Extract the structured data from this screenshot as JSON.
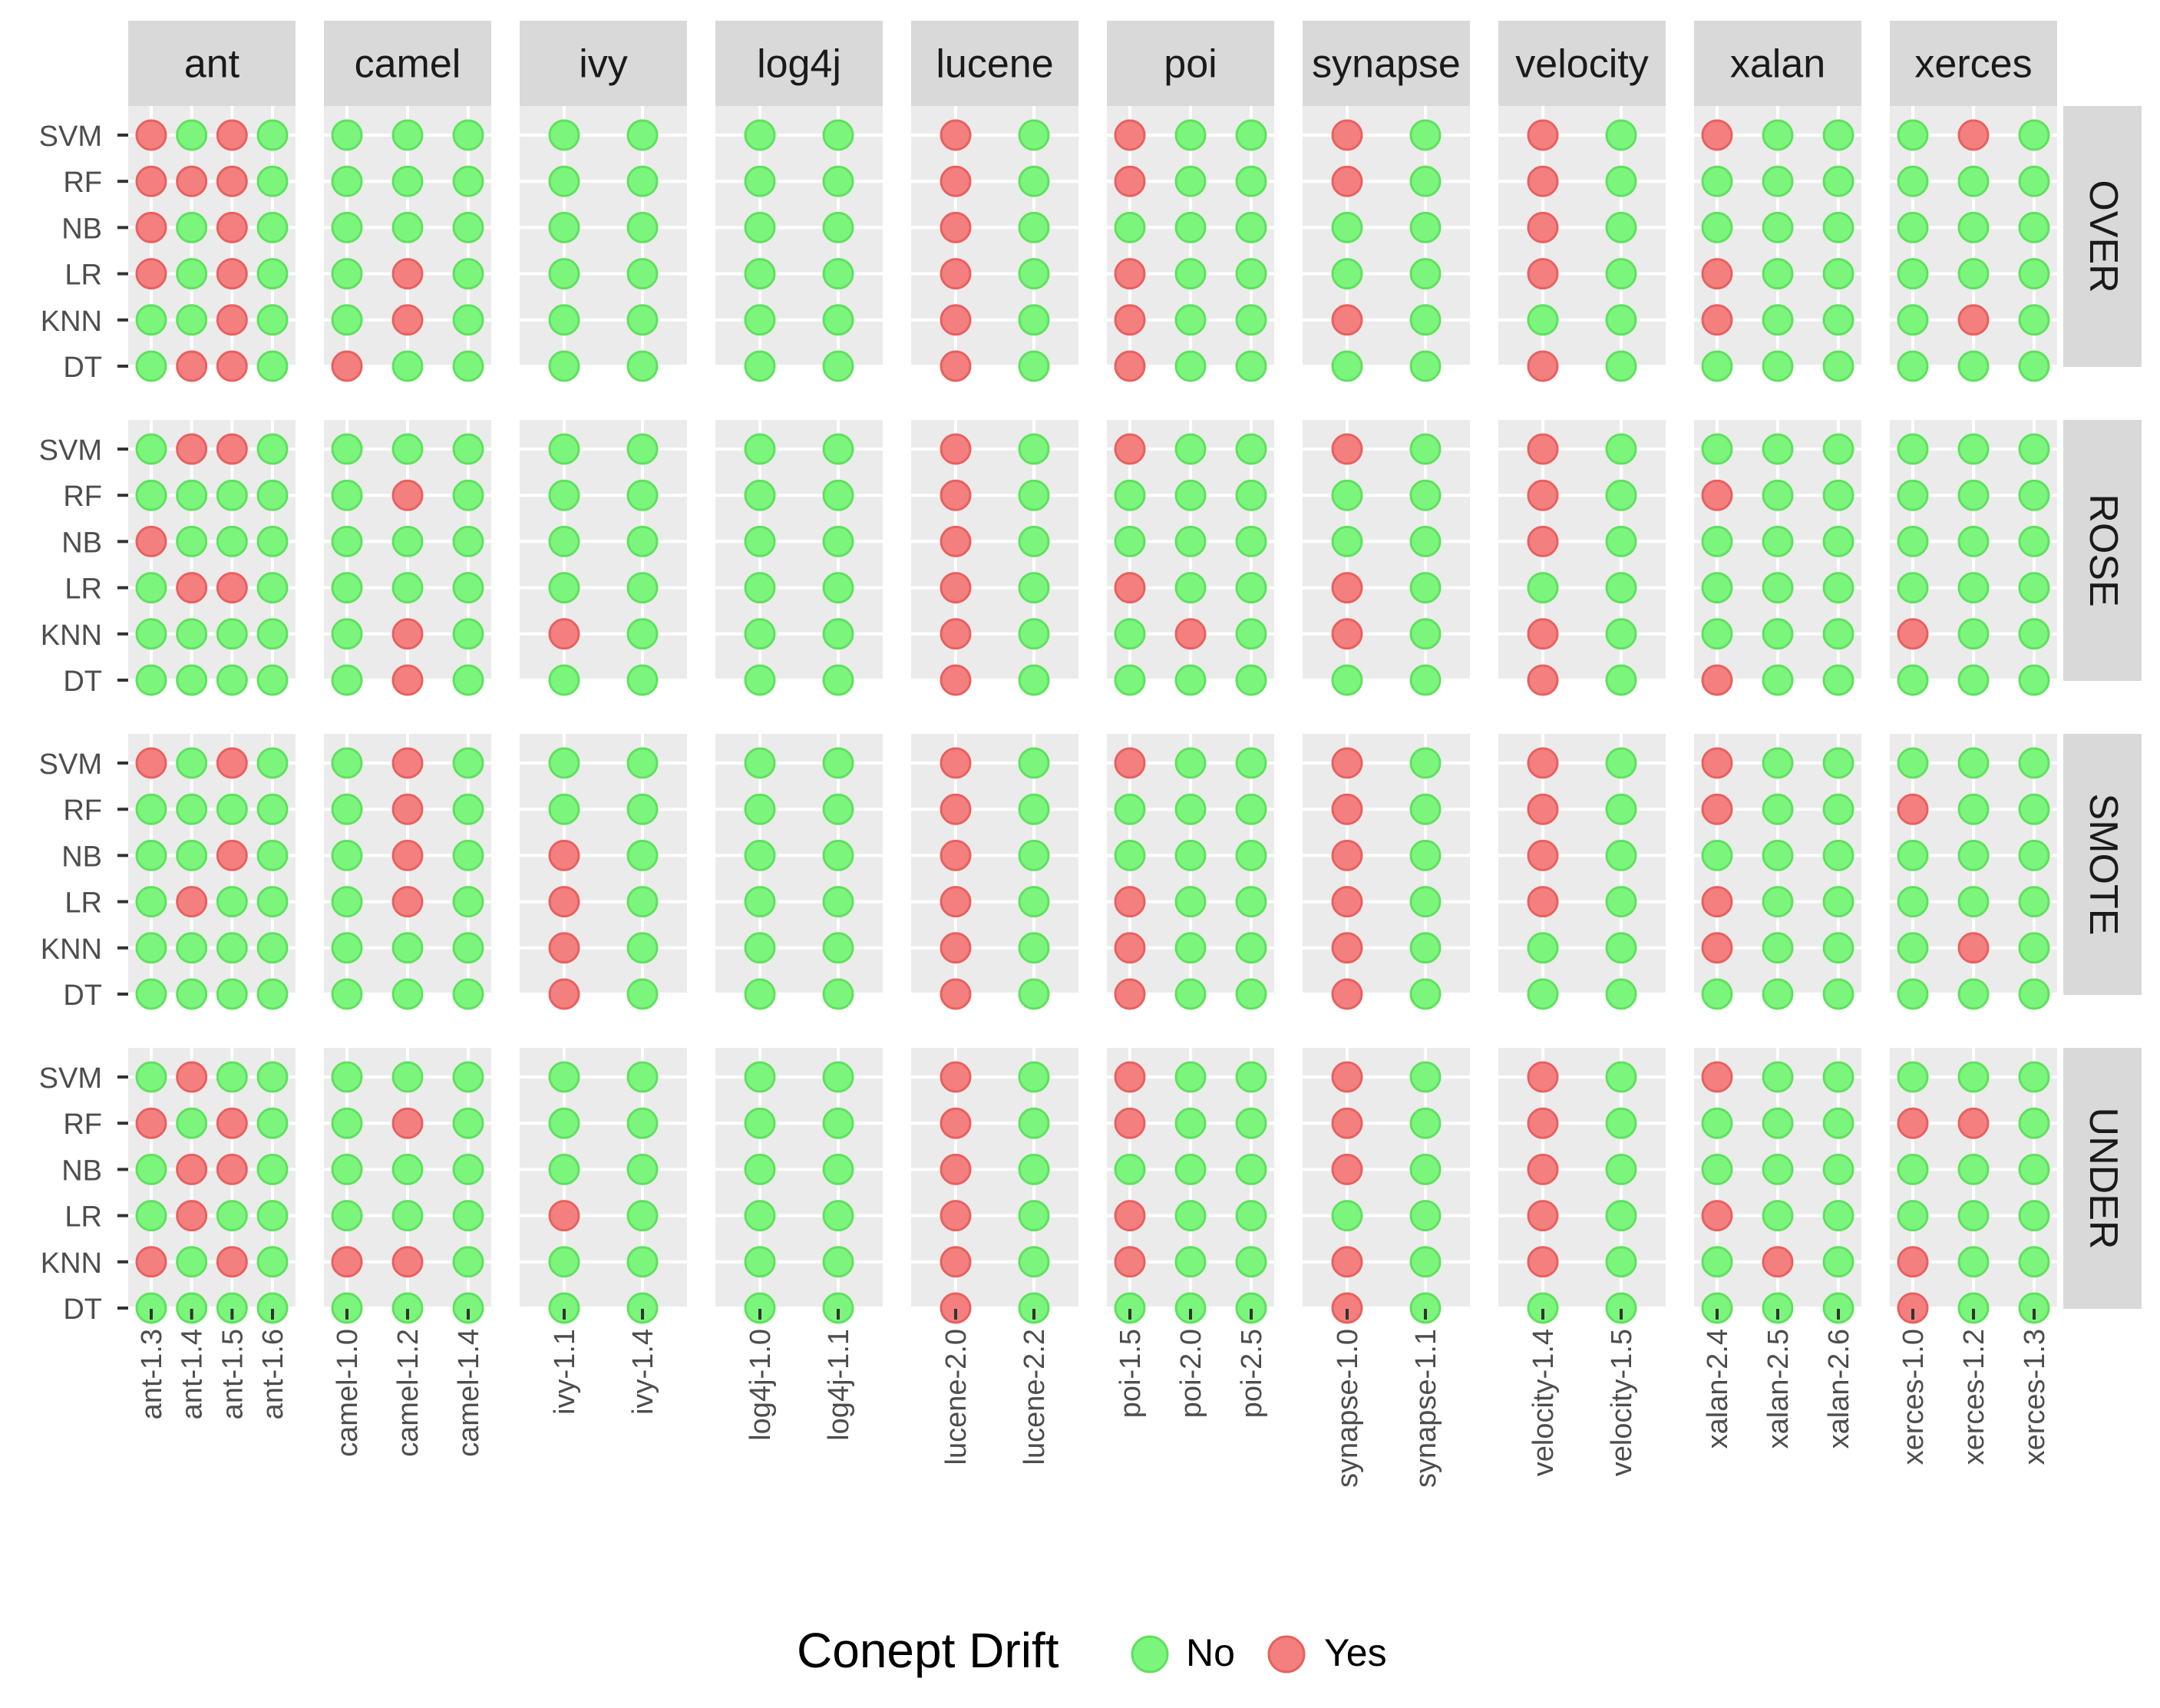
{
  "chart_data": {
    "type": "scatter",
    "title": "",
    "xlabel": "",
    "ylabel": "",
    "y_categories": [
      "SVM",
      "RF",
      "NB",
      "LR",
      "KNN",
      "DT"
    ],
    "column_facets": [
      {
        "name": "ant",
        "releases": [
          "ant-1.3",
          "ant-1.4",
          "ant-1.5",
          "ant-1.6"
        ]
      },
      {
        "name": "camel",
        "releases": [
          "camel-1.0",
          "camel-1.2",
          "camel-1.4"
        ]
      },
      {
        "name": "ivy",
        "releases": [
          "ivy-1.1",
          "ivy-1.4"
        ]
      },
      {
        "name": "log4j",
        "releases": [
          "log4j-1.0",
          "log4j-1.1"
        ]
      },
      {
        "name": "lucene",
        "releases": [
          "lucene-2.0",
          "lucene-2.2"
        ]
      },
      {
        "name": "poi",
        "releases": [
          "poi-1.5",
          "poi-2.0",
          "poi-2.5"
        ]
      },
      {
        "name": "synapse",
        "releases": [
          "synapse-1.0",
          "synapse-1.1"
        ]
      },
      {
        "name": "velocity",
        "releases": [
          "velocity-1.4",
          "velocity-1.5"
        ]
      },
      {
        "name": "xalan",
        "releases": [
          "xalan-2.4",
          "xalan-2.5",
          "xalan-2.6"
        ]
      },
      {
        "name": "xerces",
        "releases": [
          "xerces-1.0",
          "xerces-1.2",
          "xerces-1.3"
        ]
      }
    ],
    "row_facets": [
      "OVER",
      "ROSE",
      "SMOTE",
      "UNDER"
    ],
    "legend": {
      "title": "Conept Drift",
      "entries": [
        {
          "label": "No",
          "color": "#7CF57C",
          "stroke": "#5FE05F"
        },
        {
          "label": "Yes",
          "color": "#F47F7F",
          "stroke": "#E86060"
        }
      ],
      "position": "bottom"
    },
    "drift": {
      "OVER": {
        "ant": {
          "SVM": [
            1,
            0,
            1,
            0
          ],
          "RF": [
            1,
            1,
            1,
            0
          ],
          "NB": [
            1,
            0,
            1,
            0
          ],
          "LR": [
            1,
            0,
            1,
            0
          ],
          "KNN": [
            0,
            0,
            1,
            0
          ],
          "DT": [
            0,
            1,
            1,
            0
          ]
        },
        "camel": {
          "SVM": [
            0,
            0,
            0
          ],
          "RF": [
            0,
            0,
            0
          ],
          "NB": [
            0,
            0,
            0
          ],
          "LR": [
            0,
            1,
            0
          ],
          "KNN": [
            0,
            1,
            0
          ],
          "DT": [
            1,
            0,
            0
          ]
        },
        "ivy": {
          "SVM": [
            0,
            0
          ],
          "RF": [
            0,
            0
          ],
          "NB": [
            0,
            0
          ],
          "LR": [
            0,
            0
          ],
          "KNN": [
            0,
            0
          ],
          "DT": [
            0,
            0
          ]
        },
        "log4j": {
          "SVM": [
            0,
            0
          ],
          "RF": [
            0,
            0
          ],
          "NB": [
            0,
            0
          ],
          "LR": [
            0,
            0
          ],
          "KNN": [
            0,
            0
          ],
          "DT": [
            0,
            0
          ]
        },
        "lucene": {
          "SVM": [
            1,
            0
          ],
          "RF": [
            1,
            0
          ],
          "NB": [
            1,
            0
          ],
          "LR": [
            1,
            0
          ],
          "KNN": [
            1,
            0
          ],
          "DT": [
            1,
            0
          ]
        },
        "poi": {
          "SVM": [
            1,
            0,
            0
          ],
          "RF": [
            1,
            0,
            0
          ],
          "NB": [
            0,
            0,
            0
          ],
          "LR": [
            1,
            0,
            0
          ],
          "KNN": [
            1,
            0,
            0
          ],
          "DT": [
            1,
            0,
            0
          ]
        },
        "synapse": {
          "SVM": [
            1,
            0
          ],
          "RF": [
            1,
            0
          ],
          "NB": [
            0,
            0
          ],
          "LR": [
            0,
            0
          ],
          "KNN": [
            1,
            0
          ],
          "DT": [
            0,
            0
          ]
        },
        "velocity": {
          "SVM": [
            1,
            0
          ],
          "RF": [
            1,
            0
          ],
          "NB": [
            1,
            0
          ],
          "LR": [
            1,
            0
          ],
          "KNN": [
            0,
            0
          ],
          "DT": [
            1,
            0
          ]
        },
        "xalan": {
          "SVM": [
            1,
            0,
            0
          ],
          "RF": [
            0,
            0,
            0
          ],
          "NB": [
            0,
            0,
            0
          ],
          "LR": [
            1,
            0,
            0
          ],
          "KNN": [
            1,
            0,
            0
          ],
          "DT": [
            0,
            0,
            0
          ]
        },
        "xerces": {
          "SVM": [
            0,
            1,
            0
          ],
          "RF": [
            0,
            0,
            0
          ],
          "NB": [
            0,
            0,
            0
          ],
          "LR": [
            0,
            0,
            0
          ],
          "KNN": [
            0,
            1,
            0
          ],
          "DT": [
            0,
            0,
            0
          ]
        }
      },
      "ROSE": {
        "ant": {
          "SVM": [
            0,
            1,
            1,
            0
          ],
          "RF": [
            0,
            0,
            0,
            0
          ],
          "NB": [
            1,
            0,
            0,
            0
          ],
          "LR": [
            0,
            1,
            1,
            0
          ],
          "KNN": [
            0,
            0,
            0,
            0
          ],
          "DT": [
            0,
            0,
            0,
            0
          ]
        },
        "camel": {
          "SVM": [
            0,
            0,
            0
          ],
          "RF": [
            0,
            1,
            0
          ],
          "NB": [
            0,
            0,
            0
          ],
          "LR": [
            0,
            0,
            0
          ],
          "KNN": [
            0,
            1,
            0
          ],
          "DT": [
            0,
            1,
            0
          ]
        },
        "ivy": {
          "SVM": [
            0,
            0
          ],
          "RF": [
            0,
            0
          ],
          "NB": [
            0,
            0
          ],
          "LR": [
            0,
            0
          ],
          "KNN": [
            1,
            0
          ],
          "DT": [
            0,
            0
          ]
        },
        "log4j": {
          "SVM": [
            0,
            0
          ],
          "RF": [
            0,
            0
          ],
          "NB": [
            0,
            0
          ],
          "LR": [
            0,
            0
          ],
          "KNN": [
            0,
            0
          ],
          "DT": [
            0,
            0
          ]
        },
        "lucene": {
          "SVM": [
            1,
            0
          ],
          "RF": [
            1,
            0
          ],
          "NB": [
            1,
            0
          ],
          "LR": [
            1,
            0
          ],
          "KNN": [
            1,
            0
          ],
          "DT": [
            1,
            0
          ]
        },
        "poi": {
          "SVM": [
            1,
            0,
            0
          ],
          "RF": [
            0,
            0,
            0
          ],
          "NB": [
            0,
            0,
            0
          ],
          "LR": [
            1,
            0,
            0
          ],
          "KNN": [
            0,
            1,
            0
          ],
          "DT": [
            0,
            0,
            0
          ]
        },
        "synapse": {
          "SVM": [
            1,
            0
          ],
          "RF": [
            0,
            0
          ],
          "NB": [
            0,
            0
          ],
          "LR": [
            1,
            0
          ],
          "KNN": [
            1,
            0
          ],
          "DT": [
            0,
            0
          ]
        },
        "velocity": {
          "SVM": [
            1,
            0
          ],
          "RF": [
            1,
            0
          ],
          "NB": [
            1,
            0
          ],
          "LR": [
            0,
            0
          ],
          "KNN": [
            1,
            0
          ],
          "DT": [
            1,
            0
          ]
        },
        "xalan": {
          "SVM": [
            0,
            0,
            0
          ],
          "RF": [
            1,
            0,
            0
          ],
          "NB": [
            0,
            0,
            0
          ],
          "LR": [
            0,
            0,
            0
          ],
          "KNN": [
            0,
            0,
            0
          ],
          "DT": [
            1,
            0,
            0
          ]
        },
        "xerces": {
          "SVM": [
            0,
            0,
            0
          ],
          "RF": [
            0,
            0,
            0
          ],
          "NB": [
            0,
            0,
            0
          ],
          "LR": [
            0,
            0,
            0
          ],
          "KNN": [
            1,
            0,
            0
          ],
          "DT": [
            0,
            0,
            0
          ]
        }
      },
      "SMOTE": {
        "ant": {
          "SVM": [
            1,
            0,
            1,
            0
          ],
          "RF": [
            0,
            0,
            0,
            0
          ],
          "NB": [
            0,
            0,
            1,
            0
          ],
          "LR": [
            0,
            1,
            0,
            0
          ],
          "KNN": [
            0,
            0,
            0,
            0
          ],
          "DT": [
            0,
            0,
            0,
            0
          ]
        },
        "camel": {
          "SVM": [
            0,
            1,
            0
          ],
          "RF": [
            0,
            1,
            0
          ],
          "NB": [
            0,
            1,
            0
          ],
          "LR": [
            0,
            1,
            0
          ],
          "KNN": [
            0,
            0,
            0
          ],
          "DT": [
            0,
            0,
            0
          ]
        },
        "ivy": {
          "SVM": [
            0,
            0
          ],
          "RF": [
            0,
            0
          ],
          "NB": [
            1,
            0
          ],
          "LR": [
            1,
            0
          ],
          "KNN": [
            1,
            0
          ],
          "DT": [
            1,
            0
          ]
        },
        "log4j": {
          "SVM": [
            0,
            0
          ],
          "RF": [
            0,
            0
          ],
          "NB": [
            0,
            0
          ],
          "LR": [
            0,
            0
          ],
          "KNN": [
            0,
            0
          ],
          "DT": [
            0,
            0
          ]
        },
        "lucene": {
          "SVM": [
            1,
            0
          ],
          "RF": [
            1,
            0
          ],
          "NB": [
            1,
            0
          ],
          "LR": [
            1,
            0
          ],
          "KNN": [
            1,
            0
          ],
          "DT": [
            1,
            0
          ]
        },
        "poi": {
          "SVM": [
            1,
            0,
            0
          ],
          "RF": [
            0,
            0,
            0
          ],
          "NB": [
            0,
            0,
            0
          ],
          "LR": [
            1,
            0,
            0
          ],
          "KNN": [
            1,
            0,
            0
          ],
          "DT": [
            1,
            0,
            0
          ]
        },
        "synapse": {
          "SVM": [
            1,
            0
          ],
          "RF": [
            1,
            0
          ],
          "NB": [
            1,
            0
          ],
          "LR": [
            1,
            0
          ],
          "KNN": [
            1,
            0
          ],
          "DT": [
            1,
            0
          ]
        },
        "velocity": {
          "SVM": [
            1,
            0
          ],
          "RF": [
            1,
            0
          ],
          "NB": [
            1,
            0
          ],
          "LR": [
            1,
            0
          ],
          "KNN": [
            0,
            0
          ],
          "DT": [
            0,
            0
          ]
        },
        "xalan": {
          "SVM": [
            1,
            0,
            0
          ],
          "RF": [
            1,
            0,
            0
          ],
          "NB": [
            0,
            0,
            0
          ],
          "LR": [
            1,
            0,
            0
          ],
          "KNN": [
            1,
            0,
            0
          ],
          "DT": [
            0,
            0,
            0
          ]
        },
        "xerces": {
          "SVM": [
            0,
            0,
            0
          ],
          "RF": [
            1,
            0,
            0
          ],
          "NB": [
            0,
            0,
            0
          ],
          "LR": [
            0,
            0,
            0
          ],
          "KNN": [
            0,
            1,
            0
          ],
          "DT": [
            0,
            0,
            0
          ]
        }
      },
      "UNDER": {
        "ant": {
          "SVM": [
            0,
            1,
            0,
            0
          ],
          "RF": [
            1,
            0,
            1,
            0
          ],
          "NB": [
            0,
            1,
            1,
            0
          ],
          "LR": [
            0,
            1,
            0,
            0
          ],
          "KNN": [
            1,
            0,
            1,
            0
          ],
          "DT": [
            0,
            0,
            0,
            0
          ]
        },
        "camel": {
          "SVM": [
            0,
            0,
            0
          ],
          "RF": [
            0,
            1,
            0
          ],
          "NB": [
            0,
            0,
            0
          ],
          "LR": [
            0,
            0,
            0
          ],
          "KNN": [
            1,
            1,
            0
          ],
          "DT": [
            0,
            0,
            0
          ]
        },
        "ivy": {
          "SVM": [
            0,
            0
          ],
          "RF": [
            0,
            0
          ],
          "NB": [
            0,
            0
          ],
          "LR": [
            1,
            0
          ],
          "KNN": [
            0,
            0
          ],
          "DT": [
            0,
            0
          ]
        },
        "log4j": {
          "SVM": [
            0,
            0
          ],
          "RF": [
            0,
            0
          ],
          "NB": [
            0,
            0
          ],
          "LR": [
            0,
            0
          ],
          "KNN": [
            0,
            0
          ],
          "DT": [
            0,
            0
          ]
        },
        "lucene": {
          "SVM": [
            1,
            0
          ],
          "RF": [
            1,
            0
          ],
          "NB": [
            1,
            0
          ],
          "LR": [
            1,
            0
          ],
          "KNN": [
            1,
            0
          ],
          "DT": [
            1,
            0
          ]
        },
        "poi": {
          "SVM": [
            1,
            0,
            0
          ],
          "RF": [
            1,
            0,
            0
          ],
          "NB": [
            0,
            0,
            0
          ],
          "LR": [
            1,
            0,
            0
          ],
          "KNN": [
            1,
            0,
            0
          ],
          "DT": [
            0,
            0,
            0
          ]
        },
        "synapse": {
          "SVM": [
            1,
            0
          ],
          "RF": [
            1,
            0
          ],
          "NB": [
            1,
            0
          ],
          "LR": [
            0,
            0
          ],
          "KNN": [
            1,
            0
          ],
          "DT": [
            1,
            0
          ]
        },
        "velocity": {
          "SVM": [
            1,
            0
          ],
          "RF": [
            1,
            0
          ],
          "NB": [
            1,
            0
          ],
          "LR": [
            1,
            0
          ],
          "KNN": [
            1,
            0
          ],
          "DT": [
            0,
            0
          ]
        },
        "xalan": {
          "SVM": [
            1,
            0,
            0
          ],
          "RF": [
            0,
            0,
            0
          ],
          "NB": [
            0,
            0,
            0
          ],
          "LR": [
            1,
            0,
            0
          ],
          "KNN": [
            0,
            1,
            0
          ],
          "DT": [
            0,
            0,
            0
          ]
        },
        "xerces": {
          "SVM": [
            0,
            0,
            0
          ],
          "RF": [
            1,
            1,
            0
          ],
          "NB": [
            0,
            0,
            0
          ],
          "LR": [
            0,
            0,
            0
          ],
          "KNN": [
            1,
            0,
            0
          ],
          "DT": [
            1,
            0,
            0
          ]
        }
      }
    }
  }
}
